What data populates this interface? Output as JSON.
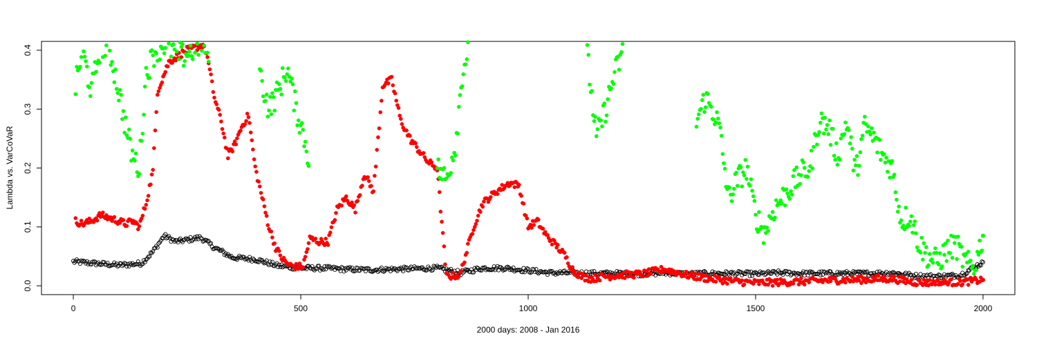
{
  "chart_data": {
    "type": "scatter",
    "title": "",
    "xlabel": "2000 days: 2008 - Jan 2016",
    "ylabel": "Lambda vs. VarCoVaR",
    "xlim": [
      -70,
      2070
    ],
    "ylim": [
      -0.015,
      0.415
    ],
    "x_ticks": [
      0,
      500,
      1000,
      1500,
      2000
    ],
    "y_ticks": [
      0.0,
      0.1,
      0.2,
      0.3,
      0.4
    ],
    "x_tick_labels": [
      "0",
      "500",
      "1000",
      "1500",
      "2000"
    ],
    "y_tick_labels": [
      "0.0",
      "0.1",
      "0.2",
      "0.3",
      "0.4"
    ],
    "grid": false,
    "legend": "none",
    "series_styles": [
      {
        "color": "#000000",
        "marker": "open-circle"
      },
      {
        "color": "#ff0000",
        "marker": "filled-circle"
      },
      {
        "color": "#00ff00",
        "marker": "filled-circle"
      }
    ],
    "series": [
      {
        "x": [
          0,
          50,
          100,
          150,
          175,
          200,
          225,
          250,
          280,
          310,
          350,
          400,
          450,
          500,
          550,
          600,
          650,
          700,
          750,
          800,
          850,
          900,
          950,
          1000,
          1050,
          1100,
          1150,
          1200,
          1250,
          1300,
          1350,
          1400,
          1450,
          1500,
          1550,
          1600,
          1650,
          1700,
          1750,
          1800,
          1850,
          1900,
          1950,
          2000
        ],
        "values": [
          0.041,
          0.038,
          0.035,
          0.038,
          0.058,
          0.085,
          0.075,
          0.078,
          0.082,
          0.065,
          0.048,
          0.045,
          0.034,
          0.03,
          0.03,
          0.028,
          0.027,
          0.028,
          0.029,
          0.03,
          0.022,
          0.03,
          0.03,
          0.026,
          0.022,
          0.022,
          0.021,
          0.021,
          0.02,
          0.022,
          0.02,
          0.021,
          0.021,
          0.02,
          0.022,
          0.021,
          0.021,
          0.021,
          0.021,
          0.022,
          0.017,
          0.016,
          0.018,
          0.04
        ]
      },
      {
        "x": [
          5,
          20,
          40,
          60,
          80,
          100,
          115,
          130,
          145,
          160,
          175,
          185,
          195,
          210,
          230,
          250,
          270,
          290,
          310,
          325,
          340,
          355,
          370,
          385,
          400,
          415,
          430,
          445,
          460,
          475,
          490,
          505,
          520,
          540,
          560,
          580,
          600,
          620,
          640,
          660,
          680,
          700,
          720,
          740,
          760,
          780,
          800,
          820,
          850,
          880,
          900,
          930,
          960,
          980,
          1000,
          1020,
          1040,
          1060,
          1080,
          1100,
          1120,
          1140,
          1160,
          1200,
          1250,
          1300,
          1350,
          1400,
          1450,
          1500,
          1550,
          1600,
          1650,
          1700,
          1750,
          1800,
          1850,
          1900,
          1950,
          2000
        ],
        "values": [
          0.11,
          0.105,
          0.11,
          0.12,
          0.115,
          0.11,
          0.105,
          0.11,
          0.1,
          0.14,
          0.195,
          0.33,
          0.35,
          0.38,
          0.39,
          0.4,
          0.405,
          0.41,
          0.32,
          0.28,
          0.22,
          0.24,
          0.27,
          0.29,
          0.2,
          0.15,
          0.1,
          0.065,
          0.045,
          0.035,
          0.032,
          0.033,
          0.08,
          0.075,
          0.075,
          0.13,
          0.15,
          0.13,
          0.19,
          0.16,
          0.34,
          0.35,
          0.28,
          0.25,
          0.23,
          0.21,
          0.2,
          0.016,
          0.018,
          0.1,
          0.14,
          0.16,
          0.175,
          0.17,
          0.1,
          0.11,
          0.085,
          0.07,
          0.052,
          0.025,
          0.015,
          0.012,
          0.015,
          0.018,
          0.02,
          0.028,
          0.018,
          0.012,
          0.008,
          0.005,
          0.006,
          0.007,
          0.009,
          0.01,
          0.011,
          0.012,
          0.006,
          0.005,
          0.006,
          0.01
        ]
      },
      {
        "x": [
          5,
          20,
          40,
          60,
          80,
          100,
          115,
          130,
          145,
          160,
          180,
          200,
          220,
          240,
          260,
          280,
          300,
          410,
          430,
          450,
          470,
          490,
          505,
          520,
          800,
          820,
          840,
          855,
          870,
          1130,
          1150,
          1170,
          1190,
          1210,
          1370,
          1390,
          1410,
          1420,
          1440,
          1460,
          1480,
          1500,
          1520,
          1540,
          1560,
          1580,
          1600,
          1620,
          1640,
          1660,
          1680,
          1700,
          1720,
          1740,
          1760,
          1780,
          1800,
          1820,
          1840,
          1860,
          1880,
          1900,
          1920,
          1940,
          1960,
          1980,
          2000
        ],
        "values": [
          0.34,
          0.4,
          0.33,
          0.41,
          0.4,
          0.33,
          0.27,
          0.22,
          0.2,
          0.36,
          0.4,
          0.41,
          0.4,
          0.39,
          0.4,
          0.41,
          0.4,
          0.36,
          0.3,
          0.33,
          0.37,
          0.3,
          0.26,
          0.21,
          0.2,
          0.18,
          0.24,
          0.36,
          0.41,
          0.39,
          0.25,
          0.3,
          0.36,
          0.4,
          0.28,
          0.32,
          0.29,
          0.27,
          0.15,
          0.18,
          0.2,
          0.12,
          0.09,
          0.13,
          0.15,
          0.17,
          0.19,
          0.2,
          0.28,
          0.27,
          0.22,
          0.28,
          0.19,
          0.27,
          0.25,
          0.22,
          0.2,
          0.11,
          0.12,
          0.07,
          0.05,
          0.04,
          0.06,
          0.07,
          0.04,
          0.03,
          0.085
        ]
      }
    ]
  }
}
